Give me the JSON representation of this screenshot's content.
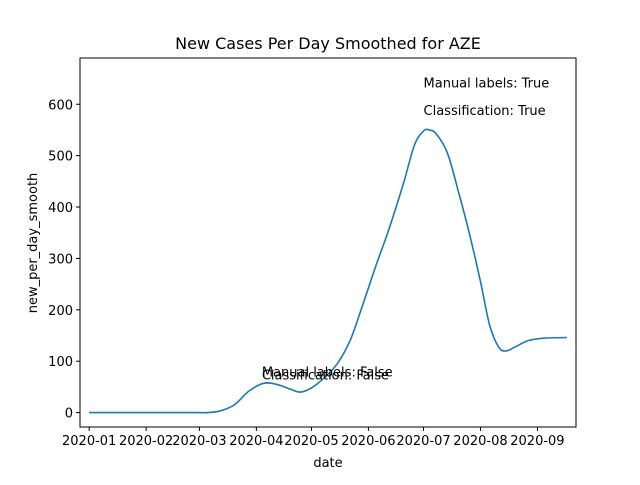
{
  "chart_data": {
    "type": "line",
    "title": "New Cases Per Day Smoothed for AZE",
    "xlabel": "date",
    "ylabel": "new_per_day_smooth",
    "xlim": [
      "2019-12-27",
      "2020-09-22"
    ],
    "ylim": [
      -28,
      690
    ],
    "x_ticks": [
      "2020-01-01",
      "2020-02-01",
      "2020-03-01",
      "2020-04-01",
      "2020-05-01",
      "2020-06-01",
      "2020-07-01",
      "2020-08-01",
      "2020-09-01"
    ],
    "x_tick_labels": [
      "2020-01",
      "2020-02",
      "2020-03",
      "2020-04",
      "2020-05",
      "2020-06",
      "2020-07",
      "2020-08",
      "2020-09"
    ],
    "y_ticks": [
      0,
      100,
      200,
      300,
      400,
      500,
      600
    ],
    "y_tick_labels": [
      "0",
      "100",
      "200",
      "300",
      "400",
      "500",
      "600"
    ],
    "grid": false,
    "series": [
      {
        "color": "#1f77b4",
        "points": [
          {
            "x": "2020-01-01",
            "y": 0
          },
          {
            "x": "2020-02-01",
            "y": 0
          },
          {
            "x": "2020-02-28",
            "y": 0
          },
          {
            "x": "2020-03-05",
            "y": 0
          },
          {
            "x": "2020-03-12",
            "y": 3
          },
          {
            "x": "2020-03-20",
            "y": 15
          },
          {
            "x": "2020-03-28",
            "y": 42
          },
          {
            "x": "2020-04-05",
            "y": 57
          },
          {
            "x": "2020-04-12",
            "y": 55
          },
          {
            "x": "2020-04-20",
            "y": 45
          },
          {
            "x": "2020-04-25",
            "y": 40
          },
          {
            "x": "2020-05-01",
            "y": 48
          },
          {
            "x": "2020-05-08",
            "y": 68
          },
          {
            "x": "2020-05-15",
            "y": 95
          },
          {
            "x": "2020-05-22",
            "y": 140
          },
          {
            "x": "2020-05-28",
            "y": 200
          },
          {
            "x": "2020-06-05",
            "y": 285
          },
          {
            "x": "2020-06-12",
            "y": 355
          },
          {
            "x": "2020-06-20",
            "y": 445
          },
          {
            "x": "2020-06-26",
            "y": 520
          },
          {
            "x": "2020-07-01",
            "y": 548
          },
          {
            "x": "2020-07-04",
            "y": 550
          },
          {
            "x": "2020-07-08",
            "y": 542
          },
          {
            "x": "2020-07-14",
            "y": 505
          },
          {
            "x": "2020-07-20",
            "y": 430
          },
          {
            "x": "2020-07-26",
            "y": 348
          },
          {
            "x": "2020-08-01",
            "y": 255
          },
          {
            "x": "2020-08-06",
            "y": 170
          },
          {
            "x": "2020-08-11",
            "y": 127
          },
          {
            "x": "2020-08-15",
            "y": 120
          },
          {
            "x": "2020-08-20",
            "y": 128
          },
          {
            "x": "2020-08-27",
            "y": 140
          },
          {
            "x": "2020-09-05",
            "y": 145
          },
          {
            "x": "2020-09-17",
            "y": 146
          }
        ]
      }
    ],
    "annotations": [
      {
        "text": "Manual labels: True",
        "x": "2020-07-01",
        "y": 633
      },
      {
        "text": "Classification: True",
        "x": "2020-07-01",
        "y": 579
      },
      {
        "text": "Manual labels: False",
        "x": "2020-04-04",
        "y": 70
      },
      {
        "text": "Classification: False",
        "x": "2020-04-04",
        "y": 64
      }
    ]
  }
}
